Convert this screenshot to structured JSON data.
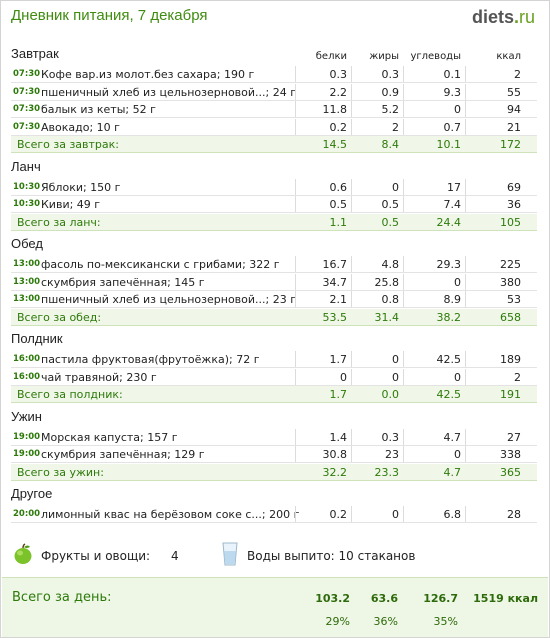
{
  "header": {
    "title": "Дневник питания, 7 декабря",
    "brand_name": "diets",
    "brand_dot": ".",
    "brand_tld": "ru"
  },
  "columns": {
    "protein": "белки",
    "fat": "жиры",
    "carbs": "углеводы",
    "kcal": "ккал"
  },
  "meals": [
    {
      "title": "Завтрак",
      "items": [
        {
          "time": "07:30",
          "name": "Кофе вар.из молот.без сахара; 190 г",
          "protein": "0.3",
          "fat": "0.3",
          "carbs": "0.1",
          "kcal": "2"
        },
        {
          "time": "07:30",
          "name": "пшеничный хлеб из цельнозерновой...; 24 г",
          "protein": "2.2",
          "fat": "0.9",
          "carbs": "9.3",
          "kcal": "55"
        },
        {
          "time": "07:30",
          "name": "балык из кеты; 52 г",
          "protein": "11.8",
          "fat": "5.2",
          "carbs": "0",
          "kcal": "94"
        },
        {
          "time": "07:30",
          "name": "Авокадо; 10 г",
          "protein": "0.2",
          "fat": "2",
          "carbs": "0.7",
          "kcal": "21"
        }
      ],
      "total": {
        "label": "Всего за завтрак:",
        "protein": "14.5",
        "fat": "8.4",
        "carbs": "10.1",
        "kcal": "172"
      }
    },
    {
      "title": "Ланч",
      "items": [
        {
          "time": "10:30",
          "name": "Яблоки; 150 г",
          "protein": "0.6",
          "fat": "0",
          "carbs": "17",
          "kcal": "69"
        },
        {
          "time": "10:30",
          "name": "Киви; 49 г",
          "protein": "0.5",
          "fat": "0.5",
          "carbs": "7.4",
          "kcal": "36"
        }
      ],
      "total": {
        "label": "Всего за ланч:",
        "protein": "1.1",
        "fat": "0.5",
        "carbs": "24.4",
        "kcal": "105"
      }
    },
    {
      "title": "Обед",
      "items": [
        {
          "time": "13:00",
          "name": "фасоль по-мексикански с грибами; 322 г",
          "protein": "16.7",
          "fat": "4.8",
          "carbs": "29.3",
          "kcal": "225"
        },
        {
          "time": "13:00",
          "name": "скумбрия запечённая; 145 г",
          "protein": "34.7",
          "fat": "25.8",
          "carbs": "0",
          "kcal": "380"
        },
        {
          "time": "13:00",
          "name": "пшеничный хлеб из цельнозерновой...; 23 г",
          "protein": "2.1",
          "fat": "0.8",
          "carbs": "8.9",
          "kcal": "53"
        }
      ],
      "total": {
        "label": "Всего за обед:",
        "protein": "53.5",
        "fat": "31.4",
        "carbs": "38.2",
        "kcal": "658"
      }
    },
    {
      "title": "Полдник",
      "items": [
        {
          "time": "16:00",
          "name": "пастила фруктовая(фрутоёжка); 72 г",
          "protein": "1.7",
          "fat": "0",
          "carbs": "42.5",
          "kcal": "189"
        },
        {
          "time": "16:00",
          "name": "чай травяной; 230 г",
          "protein": "0",
          "fat": "0",
          "carbs": "0",
          "kcal": "2"
        }
      ],
      "total": {
        "label": "Всего за полдник:",
        "protein": "1.7",
        "fat": "0.0",
        "carbs": "42.5",
        "kcal": "191"
      }
    },
    {
      "title": "Ужин",
      "items": [
        {
          "time": "19:00",
          "name": "Морская капуста; 157 г",
          "protein": "1.4",
          "fat": "0.3",
          "carbs": "4.7",
          "kcal": "27"
        },
        {
          "time": "19:00",
          "name": "скумбрия запечённая; 129 г",
          "protein": "30.8",
          "fat": "23",
          "carbs": "0",
          "kcal": "338"
        }
      ],
      "total": {
        "label": "Всего за ужин:",
        "protein": "32.2",
        "fat": "23.3",
        "carbs": "4.7",
        "kcal": "365"
      }
    },
    {
      "title": "Другое",
      "items": [
        {
          "time": "20:00",
          "name": "лимонный квас на берёзовом соке с...; 200 г",
          "protein": "0.2",
          "fat": "0",
          "carbs": "6.8",
          "kcal": "28"
        }
      ],
      "total": null
    }
  ],
  "extras": {
    "fruits_label": "Фрукты и овощи:",
    "fruits_value": "4",
    "water_label": "Воды выпито: 10 стаканов"
  },
  "day_total": {
    "label": "Всего за день:",
    "protein": "103.2",
    "fat": "63.6",
    "carbs": "126.7",
    "kcal": "1519 ккал",
    "protein_pct": "29%",
    "fat_pct": "36%",
    "carbs_pct": "35%"
  },
  "colors": {
    "green": "#2d7a0a",
    "title_green": "#3f8c10",
    "total_bg": "#f0f7e8"
  },
  "icons": {
    "fruits": "green-apple-icon",
    "water": "water-glass-icon"
  }
}
